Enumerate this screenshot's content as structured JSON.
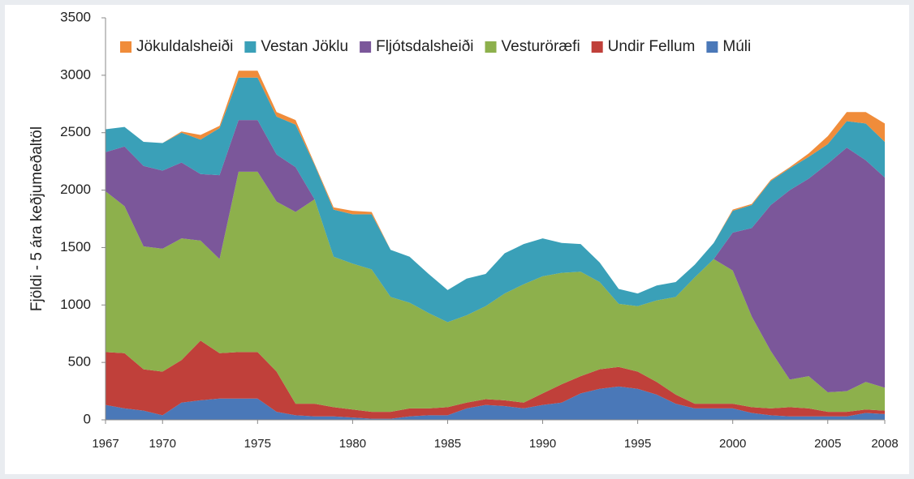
{
  "chart_data": {
    "type": "stacked_area",
    "y_label": "Fjöldi - 5 ára keðjumeðaltöl",
    "x": [
      1967,
      1968,
      1969,
      1970,
      1971,
      1972,
      1973,
      1974,
      1975,
      1976,
      1977,
      1978,
      1979,
      1980,
      1981,
      1982,
      1983,
      1984,
      1985,
      1986,
      1987,
      1988,
      1989,
      1990,
      1991,
      1992,
      1993,
      1994,
      1995,
      1996,
      1997,
      1998,
      1999,
      2000,
      2001,
      2002,
      2003,
      2004,
      2005,
      2006,
      2007,
      2008
    ],
    "series": [
      {
        "name": "Jökuldalsheiði",
        "color": "#f08c3a",
        "values": [
          0,
          0,
          0,
          0,
          10,
          40,
          20,
          60,
          60,
          40,
          40,
          10,
          20,
          30,
          20,
          0,
          0,
          0,
          0,
          0,
          0,
          0,
          0,
          0,
          0,
          0,
          0,
          0,
          0,
          0,
          0,
          0,
          0,
          10,
          10,
          10,
          10,
          30,
          70,
          80,
          100,
          160
        ]
      },
      {
        "name": "Vestan Jöklu",
        "color": "#3aa0b8",
        "values": [
          200,
          170,
          210,
          240,
          260,
          300,
          410,
          370,
          370,
          330,
          370,
          300,
          410,
          430,
          480,
          410,
          400,
          340,
          280,
          320,
          280,
          350,
          350,
          330,
          260,
          240,
          170,
          130,
          110,
          130,
          130,
          110,
          140,
          190,
          200,
          210,
          190,
          190,
          170,
          230,
          320,
          310
        ]
      },
      {
        "name": "Fljótsdalsheiði",
        "color": "#7b579a",
        "values": [
          340,
          520,
          700,
          680,
          660,
          580,
          730,
          450,
          450,
          410,
          390,
          0,
          0,
          0,
          0,
          0,
          0,
          0,
          0,
          0,
          0,
          0,
          0,
          0,
          0,
          0,
          0,
          0,
          0,
          0,
          0,
          0,
          0,
          330,
          770,
          1270,
          1650,
          1720,
          1990,
          2120,
          1930,
          1830
        ]
      },
      {
        "name": "Vesturöræfi",
        "color": "#8db04c",
        "values": [
          1400,
          1280,
          1070,
          1070,
          1060,
          870,
          820,
          1570,
          1570,
          1480,
          1670,
          1780,
          1310,
          1270,
          1240,
          1000,
          920,
          830,
          740,
          760,
          810,
          930,
          1030,
          1020,
          970,
          910,
          760,
          550,
          570,
          710,
          850,
          1100,
          1260,
          1160,
          790,
          500,
          240,
          280,
          170,
          180,
          240,
          200
        ]
      },
      {
        "name": "Undir Fellum",
        "color": "#c0403a",
        "values": [
          460,
          480,
          360,
          380,
          370,
          520,
          395,
          405,
          405,
          350,
          100,
          110,
          80,
          70,
          60,
          60,
          70,
          60,
          70,
          50,
          50,
          50,
          50,
          100,
          160,
          150,
          170,
          170,
          150,
          110,
          80,
          40,
          40,
          40,
          50,
          60,
          80,
          70,
          40,
          40,
          30,
          30
        ]
      },
      {
        "name": "Múli",
        "color": "#4a78b8",
        "values": [
          130,
          100,
          80,
          40,
          150,
          170,
          185,
          185,
          185,
          70,
          40,
          30,
          30,
          20,
          10,
          10,
          30,
          40,
          40,
          100,
          130,
          120,
          100,
          130,
          150,
          230,
          270,
          290,
          270,
          220,
          140,
          100,
          100,
          100,
          60,
          40,
          30,
          30,
          30,
          30,
          60,
          50
        ]
      }
    ],
    "xlim": [
      1967,
      2008
    ],
    "xticks": [
      1967,
      1970,
      1975,
      1980,
      1985,
      1990,
      1995,
      2000,
      2005,
      2008
    ],
    "ylim": [
      0,
      3500
    ],
    "yticks": [
      0,
      500,
      1000,
      1500,
      2000,
      2500,
      3000,
      3500
    ],
    "legend": "top"
  }
}
